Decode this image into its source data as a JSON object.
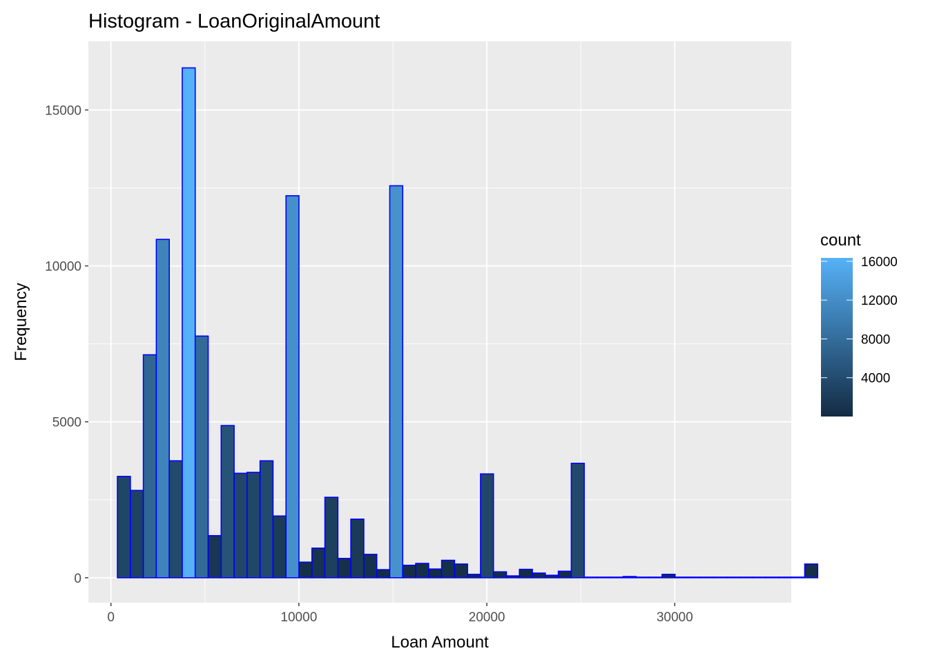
{
  "chart_data": {
    "type": "bar",
    "title": "Histogram - LoanOriginalAmount",
    "xlabel": "Loan Amount",
    "ylabel": "Frequency",
    "xlim": [
      -1200,
      36200
    ],
    "ylim": [
      -800,
      17200
    ],
    "x_ticks": [
      {
        "value": 0,
        "label": "0"
      },
      {
        "value": 10000,
        "label": "10000"
      },
      {
        "value": 20000,
        "label": "20000"
      },
      {
        "value": 30000,
        "label": "30000"
      }
    ],
    "y_ticks": [
      {
        "value": 0,
        "label": "0"
      },
      {
        "value": 5000,
        "label": "5000"
      },
      {
        "value": 10000,
        "label": "10000"
      },
      {
        "value": 15000,
        "label": "15000"
      }
    ],
    "bin_width": 690,
    "bin_start": 345,
    "counts": [
      3250,
      2800,
      7150,
      10850,
      3750,
      16350,
      7750,
      1350,
      4880,
      3350,
      3380,
      3750,
      1980,
      12250,
      500,
      950,
      2580,
      620,
      1880,
      750,
      260,
      12570,
      400,
      460,
      280,
      560,
      440,
      110,
      3330,
      190,
      60,
      270,
      150,
      80,
      210,
      3670,
      20,
      20,
      20,
      40,
      20,
      20,
      110,
      20,
      20,
      20,
      20,
      20,
      20,
      20,
      20,
      20,
      20,
      440
    ],
    "grid": true,
    "legend": {
      "title": "count",
      "placement": "right",
      "ticks": [
        {
          "value": 4000,
          "label": "4000"
        },
        {
          "value": 8000,
          "label": "8000"
        },
        {
          "value": 12000,
          "label": "12000"
        },
        {
          "value": 16000,
          "label": "16000"
        }
      ],
      "range": [
        0,
        16350
      ]
    },
    "colors": {
      "low": "#132B43",
      "high": "#56B1F7",
      "bar_outline": "#0000FF",
      "panel": "#EBEBEB",
      "grid": "#FFFFFF"
    }
  }
}
